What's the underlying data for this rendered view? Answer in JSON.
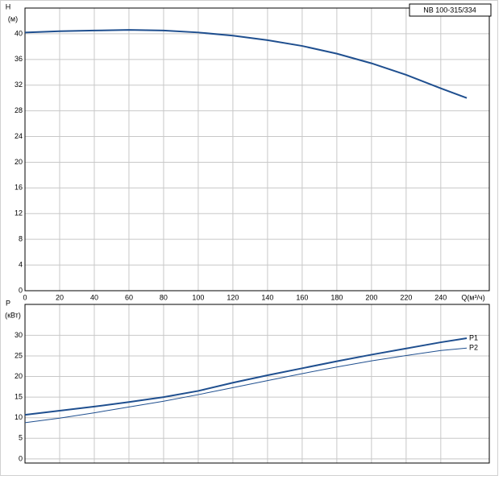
{
  "chart_data": [
    {
      "type": "line",
      "title": "NB 100-315/334",
      "y_label": "H",
      "y_unit": "(м)",
      "x_label": "Q(м³/ч)",
      "x": [
        0,
        20,
        40,
        60,
        80,
        100,
        120,
        140,
        160,
        180,
        200,
        220,
        240,
        255
      ],
      "series": [
        {
          "name": "H",
          "color": "#1f4f8f",
          "width": 2,
          "values": [
            40.2,
            40.4,
            40.5,
            40.6,
            40.5,
            40.2,
            39.7,
            39.0,
            38.1,
            36.9,
            35.4,
            33.6,
            31.5,
            30.0
          ]
        }
      ],
      "xlim": [
        0,
        268
      ],
      "xticks": [
        0,
        20,
        40,
        60,
        80,
        100,
        120,
        140,
        160,
        180,
        200,
        220,
        240
      ],
      "ylim": [
        0,
        44
      ],
      "yticks": [
        0,
        4,
        8,
        12,
        16,
        20,
        24,
        28,
        32,
        36,
        40
      ],
      "grid": true
    },
    {
      "type": "line",
      "y_label": "P",
      "y_unit": "(кВт)",
      "sharex": true,
      "x": [
        0,
        20,
        40,
        60,
        80,
        100,
        120,
        140,
        160,
        180,
        200,
        220,
        240,
        255
      ],
      "series": [
        {
          "name": "P1",
          "color": "#1f4f8f",
          "width": 2,
          "values": [
            10.7,
            11.7,
            12.7,
            13.8,
            15.0,
            16.5,
            18.5,
            20.3,
            22.0,
            23.7,
            25.3,
            26.8,
            28.3,
            29.3
          ]
        },
        {
          "name": "P2",
          "color": "#1f4f8f",
          "width": 1,
          "values": [
            8.8,
            9.9,
            11.2,
            12.6,
            14.0,
            15.6,
            17.3,
            19.0,
            20.7,
            22.3,
            23.8,
            25.1,
            26.3,
            26.9
          ]
        }
      ],
      "xlim": [
        0,
        268
      ],
      "ylim": [
        -1,
        37.5
      ],
      "yticks": [
        0,
        5,
        10,
        15,
        20,
        25,
        30
      ],
      "grid": true
    }
  ]
}
